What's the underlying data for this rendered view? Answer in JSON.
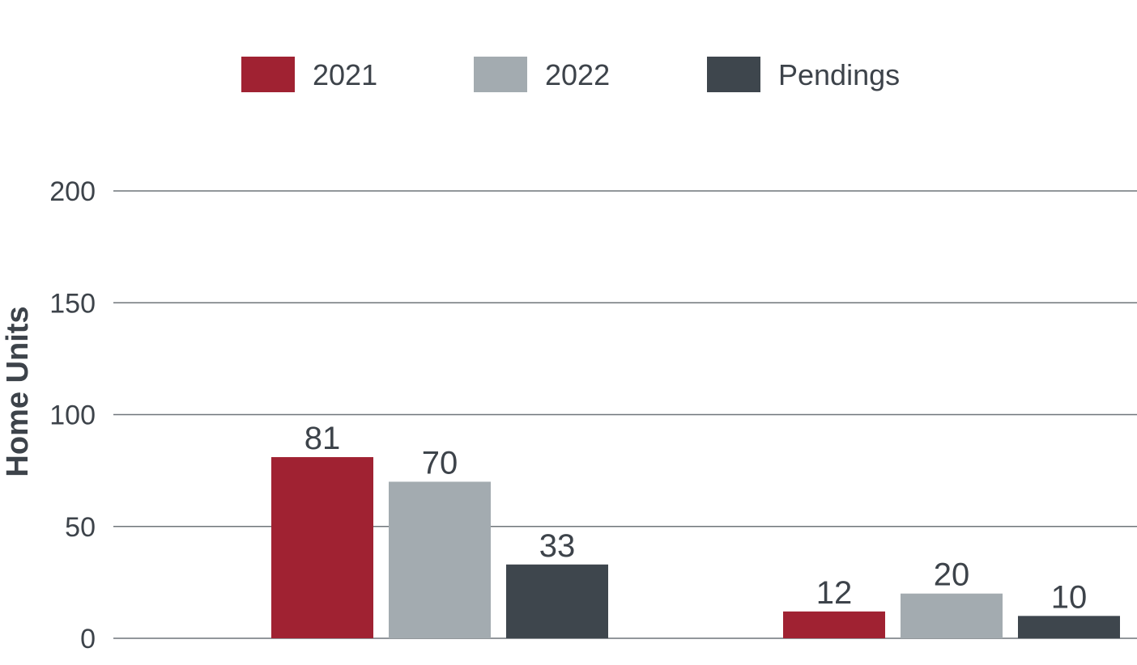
{
  "chart_data": {
    "type": "bar",
    "ylabel": "Home Units",
    "ylim": [
      0,
      200
    ],
    "yticks": [
      0,
      50,
      100,
      150,
      200
    ],
    "grid": true,
    "legend_position": "top",
    "categories": [
      "",
      ""
    ],
    "series": [
      {
        "name": "2021",
        "color": "#a02232",
        "values": [
          81,
          12
        ],
        "labels": [
          "81",
          "12"
        ]
      },
      {
        "name": "2022",
        "color": "#a3abb0",
        "values": [
          70,
          20
        ],
        "labels": [
          "70",
          "20"
        ]
      },
      {
        "name": "Pendings",
        "color": "#3e464d",
        "values": [
          33,
          10
        ],
        "labels": [
          "33",
          "10"
        ]
      }
    ]
  }
}
